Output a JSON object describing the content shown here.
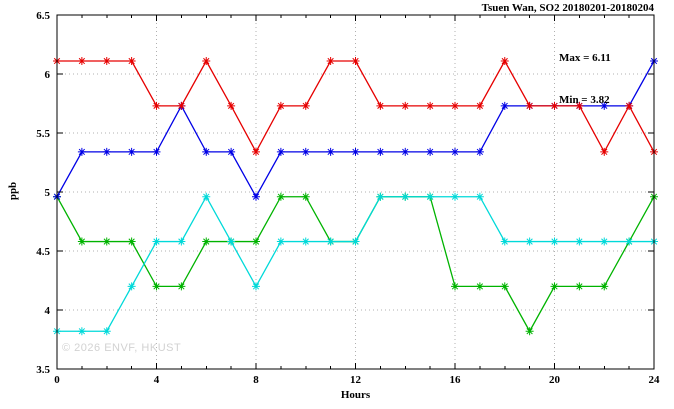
{
  "header": {
    "title": "Tsuen Wan, SO2 20180201-20180204"
  },
  "stats": {
    "max_label": "Max = 6.11",
    "min_label": "Min = 3.82"
  },
  "axes": {
    "x_label": "Hours",
    "y_label": "ppb"
  },
  "watermark": "© 2026 ENVF, HKUST",
  "chart_data": {
    "type": "line",
    "title": "Tsuen Wan, SO2 20180201-20180204",
    "xlabel": "Hours",
    "ylabel": "ppb",
    "xlim": [
      0,
      24
    ],
    "ylim": [
      3.5,
      6.5
    ],
    "xticks": [
      0,
      4,
      8,
      12,
      16,
      20,
      24
    ],
    "yticks": [
      3.5,
      4,
      4.5,
      5,
      5.5,
      6,
      6.5
    ],
    "grid": true,
    "legend": "none",
    "marker": "asterisk",
    "annotations": [
      "Max = 6.11",
      "Min = 3.82"
    ],
    "x": [
      0,
      1,
      2,
      3,
      4,
      5,
      6,
      7,
      8,
      9,
      10,
      11,
      12,
      13,
      14,
      15,
      16,
      17,
      18,
      19,
      20,
      21,
      22,
      23,
      24
    ],
    "series": [
      {
        "name": "series-red",
        "color": "#e60000",
        "values": [
          6.11,
          6.11,
          6.11,
          6.11,
          5.73,
          5.73,
          6.11,
          5.73,
          5.34,
          5.73,
          5.73,
          6.11,
          6.11,
          5.73,
          5.73,
          5.73,
          5.73,
          5.73,
          6.11,
          5.73,
          5.73,
          5.73,
          5.34,
          5.73,
          5.34
        ]
      },
      {
        "name": "series-blue",
        "color": "#0000e6",
        "values": [
          4.96,
          5.34,
          5.34,
          5.34,
          5.34,
          5.73,
          5.34,
          5.34,
          4.96,
          5.34,
          5.34,
          5.34,
          5.34,
          5.34,
          5.34,
          5.34,
          5.34,
          5.34,
          5.73,
          5.73,
          5.73,
          5.73,
          5.73,
          5.73,
          6.11
        ]
      },
      {
        "name": "series-cyan",
        "color": "#00d9d9",
        "values": [
          3.82,
          3.82,
          3.82,
          4.2,
          4.58,
          4.58,
          4.96,
          4.58,
          4.2,
          4.58,
          4.58,
          4.58,
          4.58,
          4.96,
          4.96,
          4.96,
          4.96,
          4.96,
          4.58,
          4.58,
          4.58,
          4.58,
          4.58,
          4.58,
          4.58
        ]
      },
      {
        "name": "series-green",
        "color": "#00b300",
        "values": [
          4.96,
          4.58,
          4.58,
          4.58,
          4.2,
          4.2,
          4.58,
          4.58,
          4.58,
          4.96,
          4.96,
          4.58,
          4.58,
          4.96,
          4.96,
          4.96,
          4.2,
          4.2,
          4.2,
          3.82,
          4.2,
          4.2,
          4.2,
          4.58,
          4.96
        ]
      }
    ],
    "grid_color": "#b0b0b0",
    "axis_color": "#000000"
  }
}
